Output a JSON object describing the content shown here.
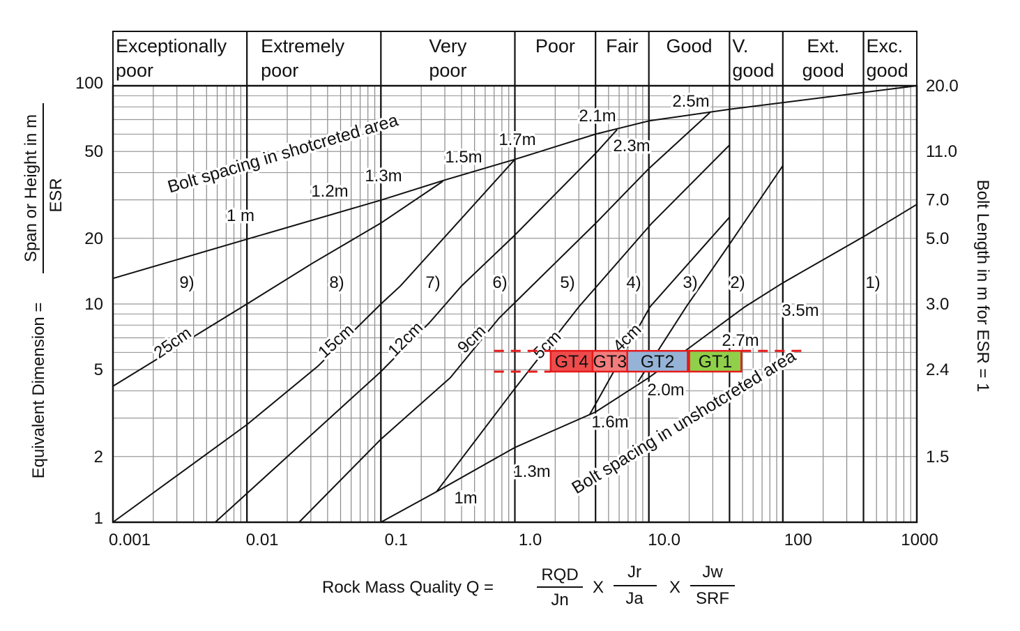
{
  "header_categories": [
    {
      "lines": [
        "Exceptionally",
        "poor"
      ]
    },
    {
      "lines": [
        "Extremely",
        "poor"
      ]
    },
    {
      "lines": [
        "Very",
        "poor"
      ]
    },
    {
      "lines": [
        "Poor"
      ]
    },
    {
      "lines": [
        "Fair"
      ]
    },
    {
      "lines": [
        "Good"
      ]
    },
    {
      "lines": [
        "V.",
        "good"
      ]
    },
    {
      "lines": [
        "Ext.",
        "good"
      ]
    },
    {
      "lines": [
        "Exc.",
        "good"
      ]
    }
  ],
  "left_axis_title": {
    "prefix": "Equivalent Dimension =",
    "numerator": "Span or Height in m",
    "denominator": "ESR"
  },
  "right_axis_title": "Bolt Length in m for ESR = 1",
  "x_axis_title": {
    "prefix": "Rock Mass Quality Q =",
    "operator": "X",
    "fractions": [
      {
        "num": "RQD",
        "den": "Jn"
      },
      {
        "num": "Jr",
        "den": "Ja"
      },
      {
        "num": "Jw",
        "den": "SRF"
      }
    ]
  },
  "chart_data": {
    "type": "line",
    "title": "",
    "xscale": "log",
    "yscale": "log",
    "xlim": [
      0.001,
      1000
    ],
    "ylim": [
      1,
      100
    ],
    "grid": true,
    "x_ticks": [
      {
        "v": 0.001,
        "label": "0.001"
      },
      {
        "v": 0.01,
        "label": "0.01"
      },
      {
        "v": 0.1,
        "label": "0.1"
      },
      {
        "v": 1,
        "label": "1.0"
      },
      {
        "v": 10,
        "label": "10.0"
      },
      {
        "v": 100,
        "label": "100"
      },
      {
        "v": 1000,
        "label": "1000"
      }
    ],
    "y_ticks": [
      {
        "v": 1,
        "label": "1"
      },
      {
        "v": 2,
        "label": "2"
      },
      {
        "v": 5,
        "label": "5"
      },
      {
        "v": 10,
        "label": "10"
      },
      {
        "v": 20,
        "label": "20"
      },
      {
        "v": 50,
        "label": "50"
      },
      {
        "v": 100,
        "label": "100"
      }
    ],
    "y2_ticks": [
      {
        "v": 2,
        "label": "1.5"
      },
      {
        "v": 5,
        "label": "2.4"
      },
      {
        "v": 10,
        "label": "3.0"
      },
      {
        "v": 20,
        "label": "5.0"
      },
      {
        "v": 30,
        "label": "7.0"
      },
      {
        "v": 50,
        "label": "11.0"
      },
      {
        "v": 100,
        "label": "20.0"
      }
    ],
    "category_boundaries_q": [
      0.01,
      0.1,
      1,
      4,
      10,
      40,
      100,
      400
    ],
    "series": [
      {
        "name": "shotcreted-bolt-spacing-boundary",
        "points": [
          [
            0.001,
            13.1
          ],
          [
            0.01,
            19.8
          ],
          [
            0.1,
            29.9
          ],
          [
            0.3,
            37
          ],
          [
            1,
            46
          ],
          [
            4,
            60
          ],
          [
            10,
            69
          ],
          [
            40,
            78
          ],
          [
            1000,
            100
          ]
        ]
      },
      {
        "name": "25cm",
        "points": [
          [
            0.001,
            4.2
          ],
          [
            0.01,
            10
          ],
          [
            0.031,
            15.4
          ],
          [
            0.1,
            23.5
          ],
          [
            0.29,
            36.5
          ]
        ]
      },
      {
        "name": "15cm",
        "points": [
          [
            0.001,
            1
          ],
          [
            0.01,
            2.8
          ],
          [
            0.034,
            5.2
          ],
          [
            0.1,
            10
          ],
          [
            0.14,
            12.1
          ],
          [
            1,
            46
          ]
        ]
      },
      {
        "name": "12cm",
        "points": [
          [
            0.0058,
            1
          ],
          [
            0.1,
            4.9
          ],
          [
            0.23,
            8.2
          ],
          [
            0.4,
            12.1
          ],
          [
            1,
            20.7
          ],
          [
            4,
            49
          ],
          [
            5.8,
            63
          ]
        ]
      },
      {
        "name": "9cm",
        "points": [
          [
            0.0245,
            1
          ],
          [
            0.1,
            2.4
          ],
          [
            0.33,
            4.6
          ],
          [
            0.76,
            8.6
          ],
          [
            4,
            23.4
          ],
          [
            9.9,
            41.5
          ],
          [
            29,
            76
          ]
        ]
      },
      {
        "name": "5cm",
        "points": [
          [
            0.26,
            1.38
          ],
          [
            1,
            4.1
          ],
          [
            3,
            9.7
          ],
          [
            10.5,
            23.4
          ],
          [
            40,
            53.5
          ]
        ]
      },
      {
        "name": "4cm",
        "points": [
          [
            3.6,
            3.1
          ],
          [
            10.2,
            9.7
          ],
          [
            40,
            25
          ]
        ]
      },
      {
        "name": "class-2-3-boundary",
        "points": [
          [
            8.3,
            4.4
          ],
          [
            19,
            9.7
          ],
          [
            40,
            18.8
          ],
          [
            100,
            43
          ]
        ]
      },
      {
        "name": "unshotcreted-bolt-spacing-boundary",
        "points": [
          [
            0.1,
            1
          ],
          [
            0.26,
            1.38
          ],
          [
            1,
            2.2
          ],
          [
            4,
            3.2
          ],
          [
            10,
            4.6
          ],
          [
            52,
            9.7
          ],
          [
            100,
            12.5
          ],
          [
            420,
            20.7
          ],
          [
            1000,
            28.6
          ]
        ]
      }
    ],
    "spacing_labels_shotcreted": [
      "1 m",
      "1.2m",
      "1.3m",
      "1.5m",
      "1.7m",
      "2.1m",
      "2.3m",
      "2.5m"
    ],
    "spacing_labels_unshotcreted": [
      "1m",
      "1.3m",
      "1.6m",
      "2.0m",
      "2.7m",
      "3.5m"
    ],
    "thickness_labels": [
      "25cm",
      "15cm",
      "12cm",
      "9cm",
      "5cm",
      "4cm"
    ],
    "region_labels": [
      "9)",
      "8)",
      "7)",
      "6)",
      "5)",
      "4)",
      "3)",
      "2)",
      "1)"
    ],
    "area_labels": [
      "Bolt spacing in shotcreted area",
      "Bolt spacing in unshotcreted area"
    ],
    "gt_band": {
      "span": [
        4.9,
        6.1
      ],
      "dashed_left_q": [
        0.7,
        1.85
      ],
      "dashed_right_q": [
        49,
        140
      ],
      "color": "#e41a1a"
    },
    "gt_boxes": [
      {
        "label": "GT4",
        "q": [
          1.85,
          3.8
        ],
        "color": "#ef4b4b"
      },
      {
        "label": "GT3",
        "q": [
          3.8,
          6.9
        ],
        "color": "#f37c7c"
      },
      {
        "label": "GT2",
        "q": [
          6.9,
          19.5
        ],
        "color": "#95b3d7"
      },
      {
        "label": "GT1",
        "q": [
          20,
          49
        ],
        "color": "#8fcf4a"
      }
    ]
  }
}
